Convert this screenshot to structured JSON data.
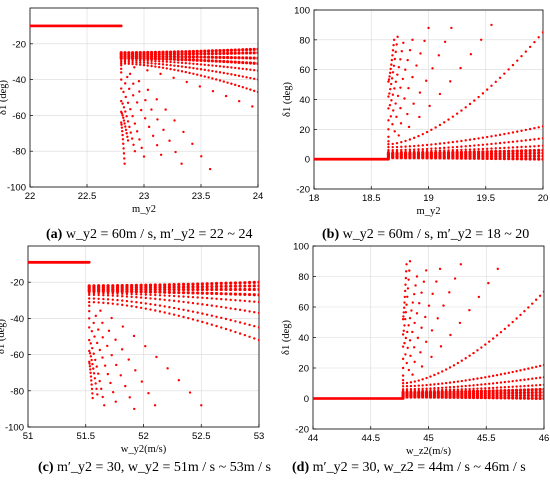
{
  "captions": [
    {
      "letter": "(a)",
      "text": "w_y2 = 60m / s, m′_y2 = 22 ~ 24"
    },
    {
      "letter": "(b)",
      "text": "w_y2 = 60m / s, m′_y2 = 18 ~ 20"
    },
    {
      "letter": "(c)",
      "text": "m′_y2 = 30, w_y2 = 51m / s ~ 53m / s"
    },
    {
      "letter": "(d)",
      "text": "m′_y2 = 30, w_z2 = 44m / s ~ 46m / s"
    }
  ],
  "chart_data": [
    {
      "id": "a",
      "type": "scatter",
      "xlabel": "m_y2",
      "ylabel": "δ1 (deg)",
      "xlim": [
        22,
        24
      ],
      "ylim": [
        -100,
        0
      ],
      "xticks": [
        22,
        22.5,
        23,
        23.5,
        24
      ],
      "xtick_labels": [
        "22",
        "22.5",
        "23",
        "23.5",
        "24"
      ],
      "yticks": [
        -100,
        -80,
        -60,
        -40,
        -20
      ],
      "ytick_labels": [
        "-100",
        "-80",
        "-60",
        "-40",
        "-20"
      ],
      "grid": true,
      "color": "#ff0000",
      "pre": {
        "x_start": 22,
        "x_end": 22.8,
        "y": -10
      },
      "break_x": 22.8,
      "series_end_x": [
        24,
        24,
        24,
        24,
        24,
        24,
        24,
        23.95,
        23.58,
        23.33,
        23.15,
        23.0,
        22.92,
        22.86,
        22.83
      ],
      "series_end_y": [
        -23,
        -25,
        -28,
        -31,
        -35,
        -40,
        -47,
        -55,
        -90,
        -87,
        -82,
        -83,
        -80,
        -74,
        -87
      ],
      "series_start_y": [
        -25,
        -26,
        -27,
        -28,
        -29,
        -30,
        -31,
        -32,
        -34,
        -36,
        -40,
        -45,
        -52,
        -58,
        -64
      ]
    },
    {
      "id": "b",
      "type": "scatter",
      "xlabel": "m_y2",
      "ylabel": "δ1 (deg)",
      "xlim": [
        18,
        20
      ],
      "ylim": [
        -20,
        100
      ],
      "xticks": [
        18,
        18.5,
        19,
        19.5,
        20
      ],
      "xtick_labels": [
        "18",
        "18.5",
        "19",
        "19.5",
        "20"
      ],
      "yticks": [
        -20,
        0,
        20,
        40,
        60,
        80,
        100
      ],
      "ytick_labels": [
        "-20",
        "0",
        "20",
        "40",
        "60",
        "80",
        "100"
      ],
      "grid": true,
      "color": "#ff0000",
      "pre": {
        "x_start": 18,
        "x_end": 18.65,
        "y": 0
      },
      "break_x": 18.65,
      "series_end_x": [
        20,
        20,
        20,
        20,
        20,
        20,
        20,
        20,
        19.55,
        19.2,
        19.0,
        18.86,
        18.78,
        18.73,
        18.7
      ],
      "series_end_y": [
        0,
        2,
        4,
        6,
        9,
        14,
        22,
        85,
        90,
        88,
        88,
        80,
        78,
        82,
        80
      ],
      "series_start_y": [
        1,
        2,
        3,
        4,
        5,
        6,
        8,
        10,
        12,
        15,
        20,
        26,
        34,
        42,
        52
      ]
    },
    {
      "id": "c",
      "type": "scatter",
      "xlabel": "w_y2(m/s)",
      "ylabel": "δ1 (deg)",
      "xlim": [
        51,
        53
      ],
      "ylim": [
        -100,
        0
      ],
      "xticks": [
        51,
        51.5,
        52,
        52.5,
        53
      ],
      "xtick_labels": [
        "51",
        "51.5",
        "52",
        "52.5",
        "53"
      ],
      "yticks": [
        -100,
        -80,
        -60,
        -40,
        -20
      ],
      "ytick_labels": [
        "-100",
        "-80",
        "-60",
        "-40",
        "-20"
      ],
      "grid": true,
      "color": "#ff0000",
      "pre": {
        "x_start": 51,
        "x_end": 51.53,
        "y": -9
      },
      "break_x": 51.53,
      "series_end_x": [
        53,
        53,
        53,
        53,
        53,
        53,
        53,
        53,
        52.5,
        52.1,
        51.92,
        51.76,
        51.66,
        51.6,
        51.56
      ],
      "series_end_y": [
        -20,
        -22,
        -24,
        -27,
        -31,
        -37,
        -45,
        -52,
        -88,
        -88,
        -90,
        -86,
        -88,
        -82,
        -84
      ],
      "series_start_y": [
        -22,
        -23,
        -24,
        -25,
        -26,
        -27,
        -29,
        -31,
        -33,
        -36,
        -40,
        -45,
        -52,
        -58,
        -64
      ]
    },
    {
      "id": "d",
      "type": "scatter",
      "xlabel": "w_z2(m/s)",
      "ylabel": "δ1 (deg)",
      "xlim": [
        44,
        46
      ],
      "ylim": [
        -20,
        100
      ],
      "xticks": [
        44,
        44.5,
        45,
        45.5,
        46
      ],
      "xtick_labels": [
        "44",
        "44.5",
        "45",
        "45.5",
        "46"
      ],
      "yticks": [
        -20,
        0,
        20,
        40,
        60,
        80,
        100
      ],
      "ytick_labels": [
        "-20",
        "0",
        "20",
        "40",
        "60",
        "80",
        "100"
      ],
      "grid": true,
      "color": "#ff0000",
      "pre": {
        "x_start": 44,
        "x_end": 44.78,
        "y": 0
      },
      "break_x": 44.78,
      "series_end_x": [
        46,
        46,
        46,
        46,
        46,
        46,
        46,
        46,
        45.6,
        45.28,
        45.1,
        44.98,
        44.9,
        44.84,
        44.81
      ],
      "series_end_y": [
        0,
        2,
        4,
        6,
        9,
        14,
        22,
        70,
        85,
        88,
        85,
        84,
        80,
        90,
        88
      ],
      "series_start_y": [
        1,
        2,
        3,
        4,
        5,
        6,
        8,
        10,
        12,
        15,
        20,
        26,
        34,
        42,
        52
      ]
    }
  ]
}
